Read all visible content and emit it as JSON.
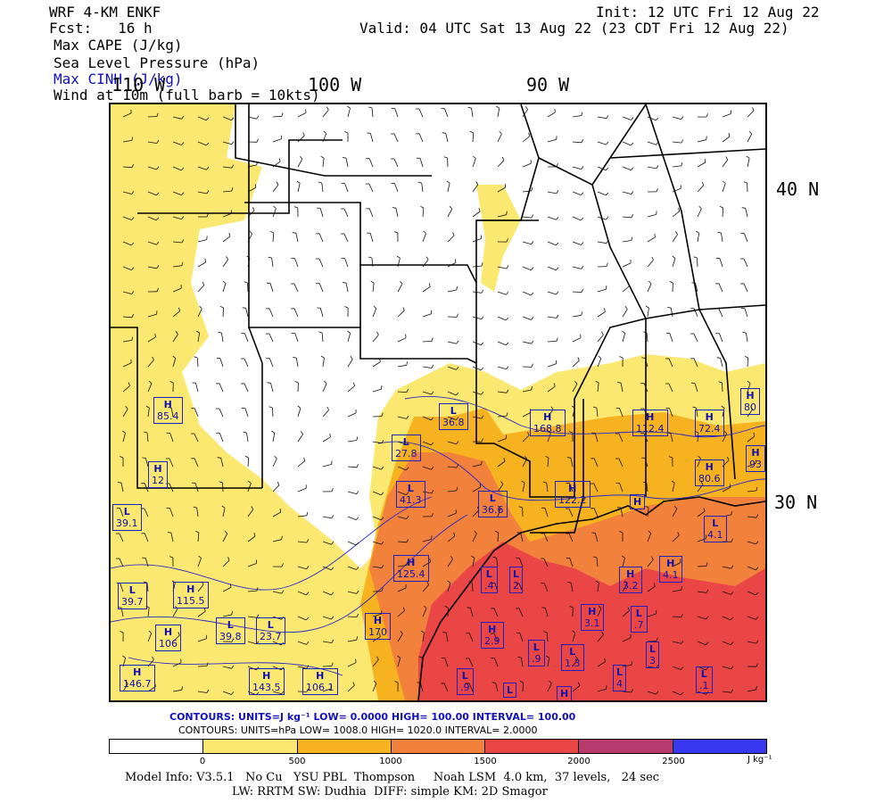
{
  "header": {
    "model": "WRF 4-KM ENKF",
    "fcst": "Fcst:   16 h",
    "init": "Init: 12 UTC Fri 12 Aug 22",
    "valid": "Valid: 04 UTC Sat 13 Aug 22 (23 CDT Fri 12 Aug 22)",
    "fields": [
      "Max CAPE (J/kg)",
      "Sea Level Pressure (hPa)",
      "Max CINH (J/kg)",
      "Wind at 10m (full barb = 10kts)"
    ]
  },
  "map": {
    "lon_labels": [
      "110 W",
      "100 W",
      "90 W"
    ],
    "lat_labels": [
      "40 N",
      "30 N"
    ],
    "colors": {
      "c0": "#ffffff",
      "c500": "#fbe871",
      "c1000": "#f7b21f",
      "c1500": "#f2813c",
      "c2000": "#ea4646",
      "c2500": "#b83a6e",
      "c3000": "#3838f0"
    },
    "pressure_centers": [
      {
        "k": "H",
        "v": "85.4"
      },
      {
        "k": "H",
        "v": "12"
      },
      {
        "k": "L",
        "v": "39.1"
      },
      {
        "k": "L",
        "v": "39.7"
      },
      {
        "k": "H",
        "v": "115.5"
      },
      {
        "k": "H",
        "v": "106"
      },
      {
        "k": "L",
        "v": "39.8"
      },
      {
        "k": "L",
        "v": "23.7"
      },
      {
        "k": "H",
        "v": "146.7"
      },
      {
        "k": "H",
        "v": "143.5"
      },
      {
        "k": "H",
        "v": "106.1"
      },
      {
        "k": "L",
        "v": "36.8"
      },
      {
        "k": "L",
        "v": "27.8"
      },
      {
        "k": "L",
        "v": "41.3"
      },
      {
        "k": "L",
        "v": "36.6"
      },
      {
        "k": "H",
        "v": "125.4"
      },
      {
        "k": "H",
        "v": "170"
      },
      {
        "k": "H",
        "v": "168.8"
      },
      {
        "k": "H",
        "v": "112.4"
      },
      {
        "k": "H",
        "v": "72.4"
      },
      {
        "k": "H",
        "v": "80"
      },
      {
        "k": "H",
        "v": "93"
      },
      {
        "k": "H",
        "v": "80.6"
      },
      {
        "k": "H",
        "v": "122.2"
      },
      {
        "k": "H",
        "v": ""
      },
      {
        "k": "L",
        "v": "4.1"
      },
      {
        "k": "H",
        "v": "4.1"
      },
      {
        "k": "H",
        "v": "3.2"
      },
      {
        "k": "L",
        "v": ".4"
      },
      {
        "k": "L",
        "v": "2"
      },
      {
        "k": "H",
        "v": "2.9"
      },
      {
        "k": "H",
        "v": "3.1"
      },
      {
        "k": "L",
        "v": ".7"
      },
      {
        "k": "L",
        "v": ".9"
      },
      {
        "k": "L",
        "v": "1.3"
      },
      {
        "k": "L",
        "v": "3"
      },
      {
        "k": "L",
        "v": "4"
      },
      {
        "k": "L",
        "v": ".1"
      },
      {
        "k": "L",
        "v": ".9"
      },
      {
        "k": "L",
        "v": ""
      },
      {
        "k": "H",
        "v": ""
      }
    ]
  },
  "contours": {
    "line1": "CONTOURS:  UNITS=J kg⁻¹  LOW=  0.0000      HIGH=  100.00      INTERVAL=   100.00",
    "line2": "CONTOURS:  UNITS=hPa  LOW=  1008.0      HIGH=  1020.0      INTERVAL=   2.0000"
  },
  "colorbar": {
    "ticks": [
      "0",
      "500",
      "1000",
      "1500",
      "2000",
      "2500"
    ],
    "unit": "J kg⁻¹"
  },
  "footer": {
    "line1": "Model Info: V3.5.1   No Cu   YSU PBL  Thompson     Noah LSM  4.0 km,  37 levels,   24 sec",
    "line2": "LW: RRTM SW: Dudhia  DIFF: simple KM: 2D Smagor"
  }
}
